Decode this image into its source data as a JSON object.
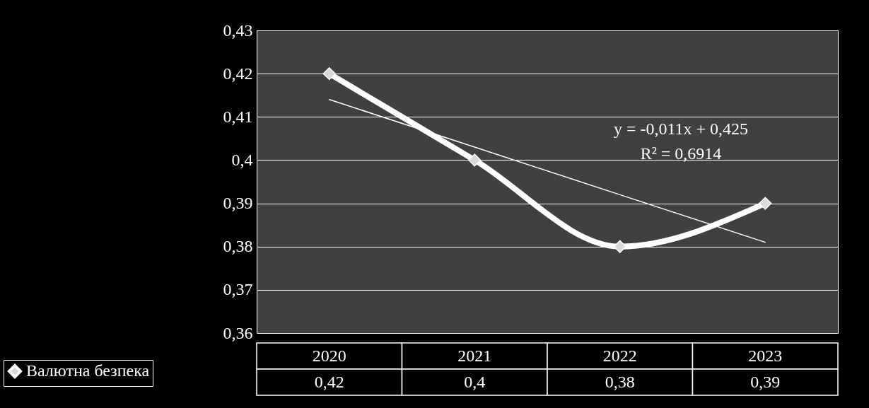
{
  "chart_data": {
    "type": "line",
    "categories": [
      "2020",
      "2021",
      "2022",
      "2023"
    ],
    "series": [
      {
        "name": "Валютна безпека",
        "color": "#ffffff",
        "values": [
          0.42,
          0.4,
          0.38,
          0.39
        ],
        "value_labels": [
          "0,42",
          "0,4",
          "0,38",
          "0,39"
        ],
        "marker": "diamond"
      },
      {
        "type": "line",
        "color": "#ffffff",
        "values": [
          0.414,
          0.403,
          0.392,
          0.381
        ],
        "marker": "none"
      }
    ],
    "ylim": [
      0.36,
      0.43
    ],
    "yticks": [
      {
        "value": 0.36,
        "label": "0,36"
      },
      {
        "value": 0.37,
        "label": "0,37"
      },
      {
        "value": 0.38,
        "label": "0,38"
      },
      {
        "value": 0.39,
        "label": "0,39"
      },
      {
        "value": 0.4,
        "label": "0,4"
      },
      {
        "value": 0.41,
        "label": "0,41"
      },
      {
        "value": 0.42,
        "label": "0,42"
      },
      {
        "value": 0.43,
        "label": "0,43"
      }
    ],
    "grid": "y",
    "legend": "bottom left",
    "annotations": [
      "y = -0,011x + 0,425",
      "R² = 0,6914"
    ]
  }
}
